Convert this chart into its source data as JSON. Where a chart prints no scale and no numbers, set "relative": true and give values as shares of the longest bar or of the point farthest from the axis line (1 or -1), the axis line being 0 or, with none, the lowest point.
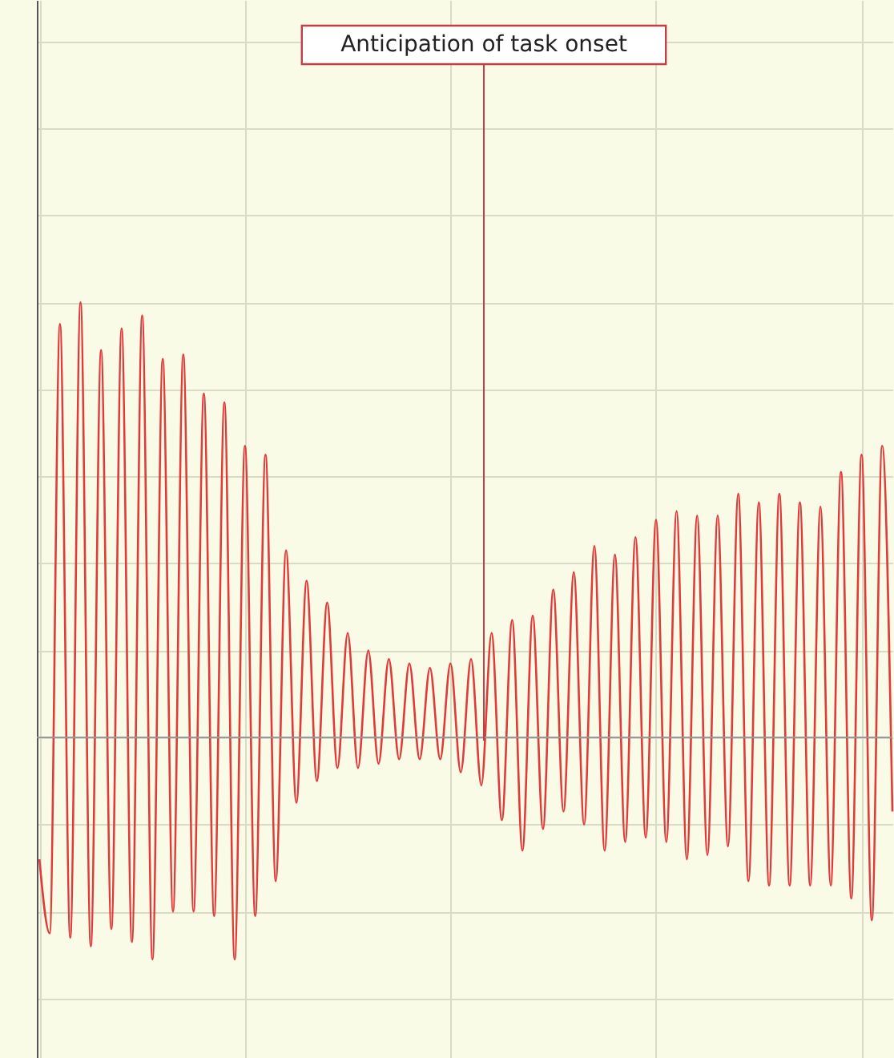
{
  "chart_data": {
    "type": "line",
    "relative": true,
    "grid": true,
    "line_style": "solid",
    "annotations": [
      "Anticipation of task onset"
    ],
    "categories": [
      null,
      null,
      null,
      null,
      null,
      null,
      null,
      null,
      null,
      null,
      null,
      null,
      null,
      null,
      null,
      null,
      null,
      null,
      null,
      null,
      null,
      null,
      null,
      null,
      null,
      null,
      null,
      null,
      null,
      null,
      null,
      null,
      null,
      null,
      null,
      null,
      null,
      null,
      null,
      null,
      null,
      null,
      null,
      null,
      null,
      null,
      null,
      null,
      null,
      null,
      null,
      null,
      null,
      null,
      null,
      null,
      null,
      null,
      null,
      null,
      null,
      null,
      null,
      null,
      null,
      null,
      null,
      null,
      null,
      null,
      null,
      null,
      null,
      null,
      null,
      null,
      null,
      null,
      null,
      null,
      null,
      null,
      null,
      null
    ],
    "series": [
      {
        "color": "#e03a3a",
        "values": [
          -0.28,
          -0.45,
          0.95,
          -0.46,
          1.0,
          -0.48,
          0.89,
          -0.44,
          0.94,
          -0.47,
          0.97,
          -0.51,
          0.87,
          -0.4,
          0.88,
          -0.4,
          0.79,
          -0.41,
          0.77,
          -0.51,
          0.67,
          -0.41,
          0.65,
          -0.33,
          0.43,
          -0.15,
          0.36,
          -0.1,
          0.31,
          -0.07,
          0.24,
          -0.07,
          0.2,
          -0.06,
          0.18,
          -0.05,
          0.17,
          -0.05,
          0.16,
          -0.05,
          0.17,
          -0.08,
          0.18,
          -0.11,
          0.24,
          -0.19,
          0.27,
          -0.26,
          0.28,
          -0.21,
          0.34,
          -0.17,
          0.38,
          -0.2,
          0.44,
          -0.26,
          0.42,
          -0.24,
          0.46,
          -0.23,
          0.5,
          -0.24,
          0.52,
          -0.28,
          0.51,
          -0.27,
          0.51,
          -0.25,
          0.56,
          -0.33,
          0.54,
          -0.34,
          0.56,
          -0.34,
          0.54,
          -0.34,
          0.53,
          -0.34,
          0.61,
          -0.37,
          0.65,
          -0.42,
          0.67,
          -0.17
        ]
      }
    ]
  }
}
